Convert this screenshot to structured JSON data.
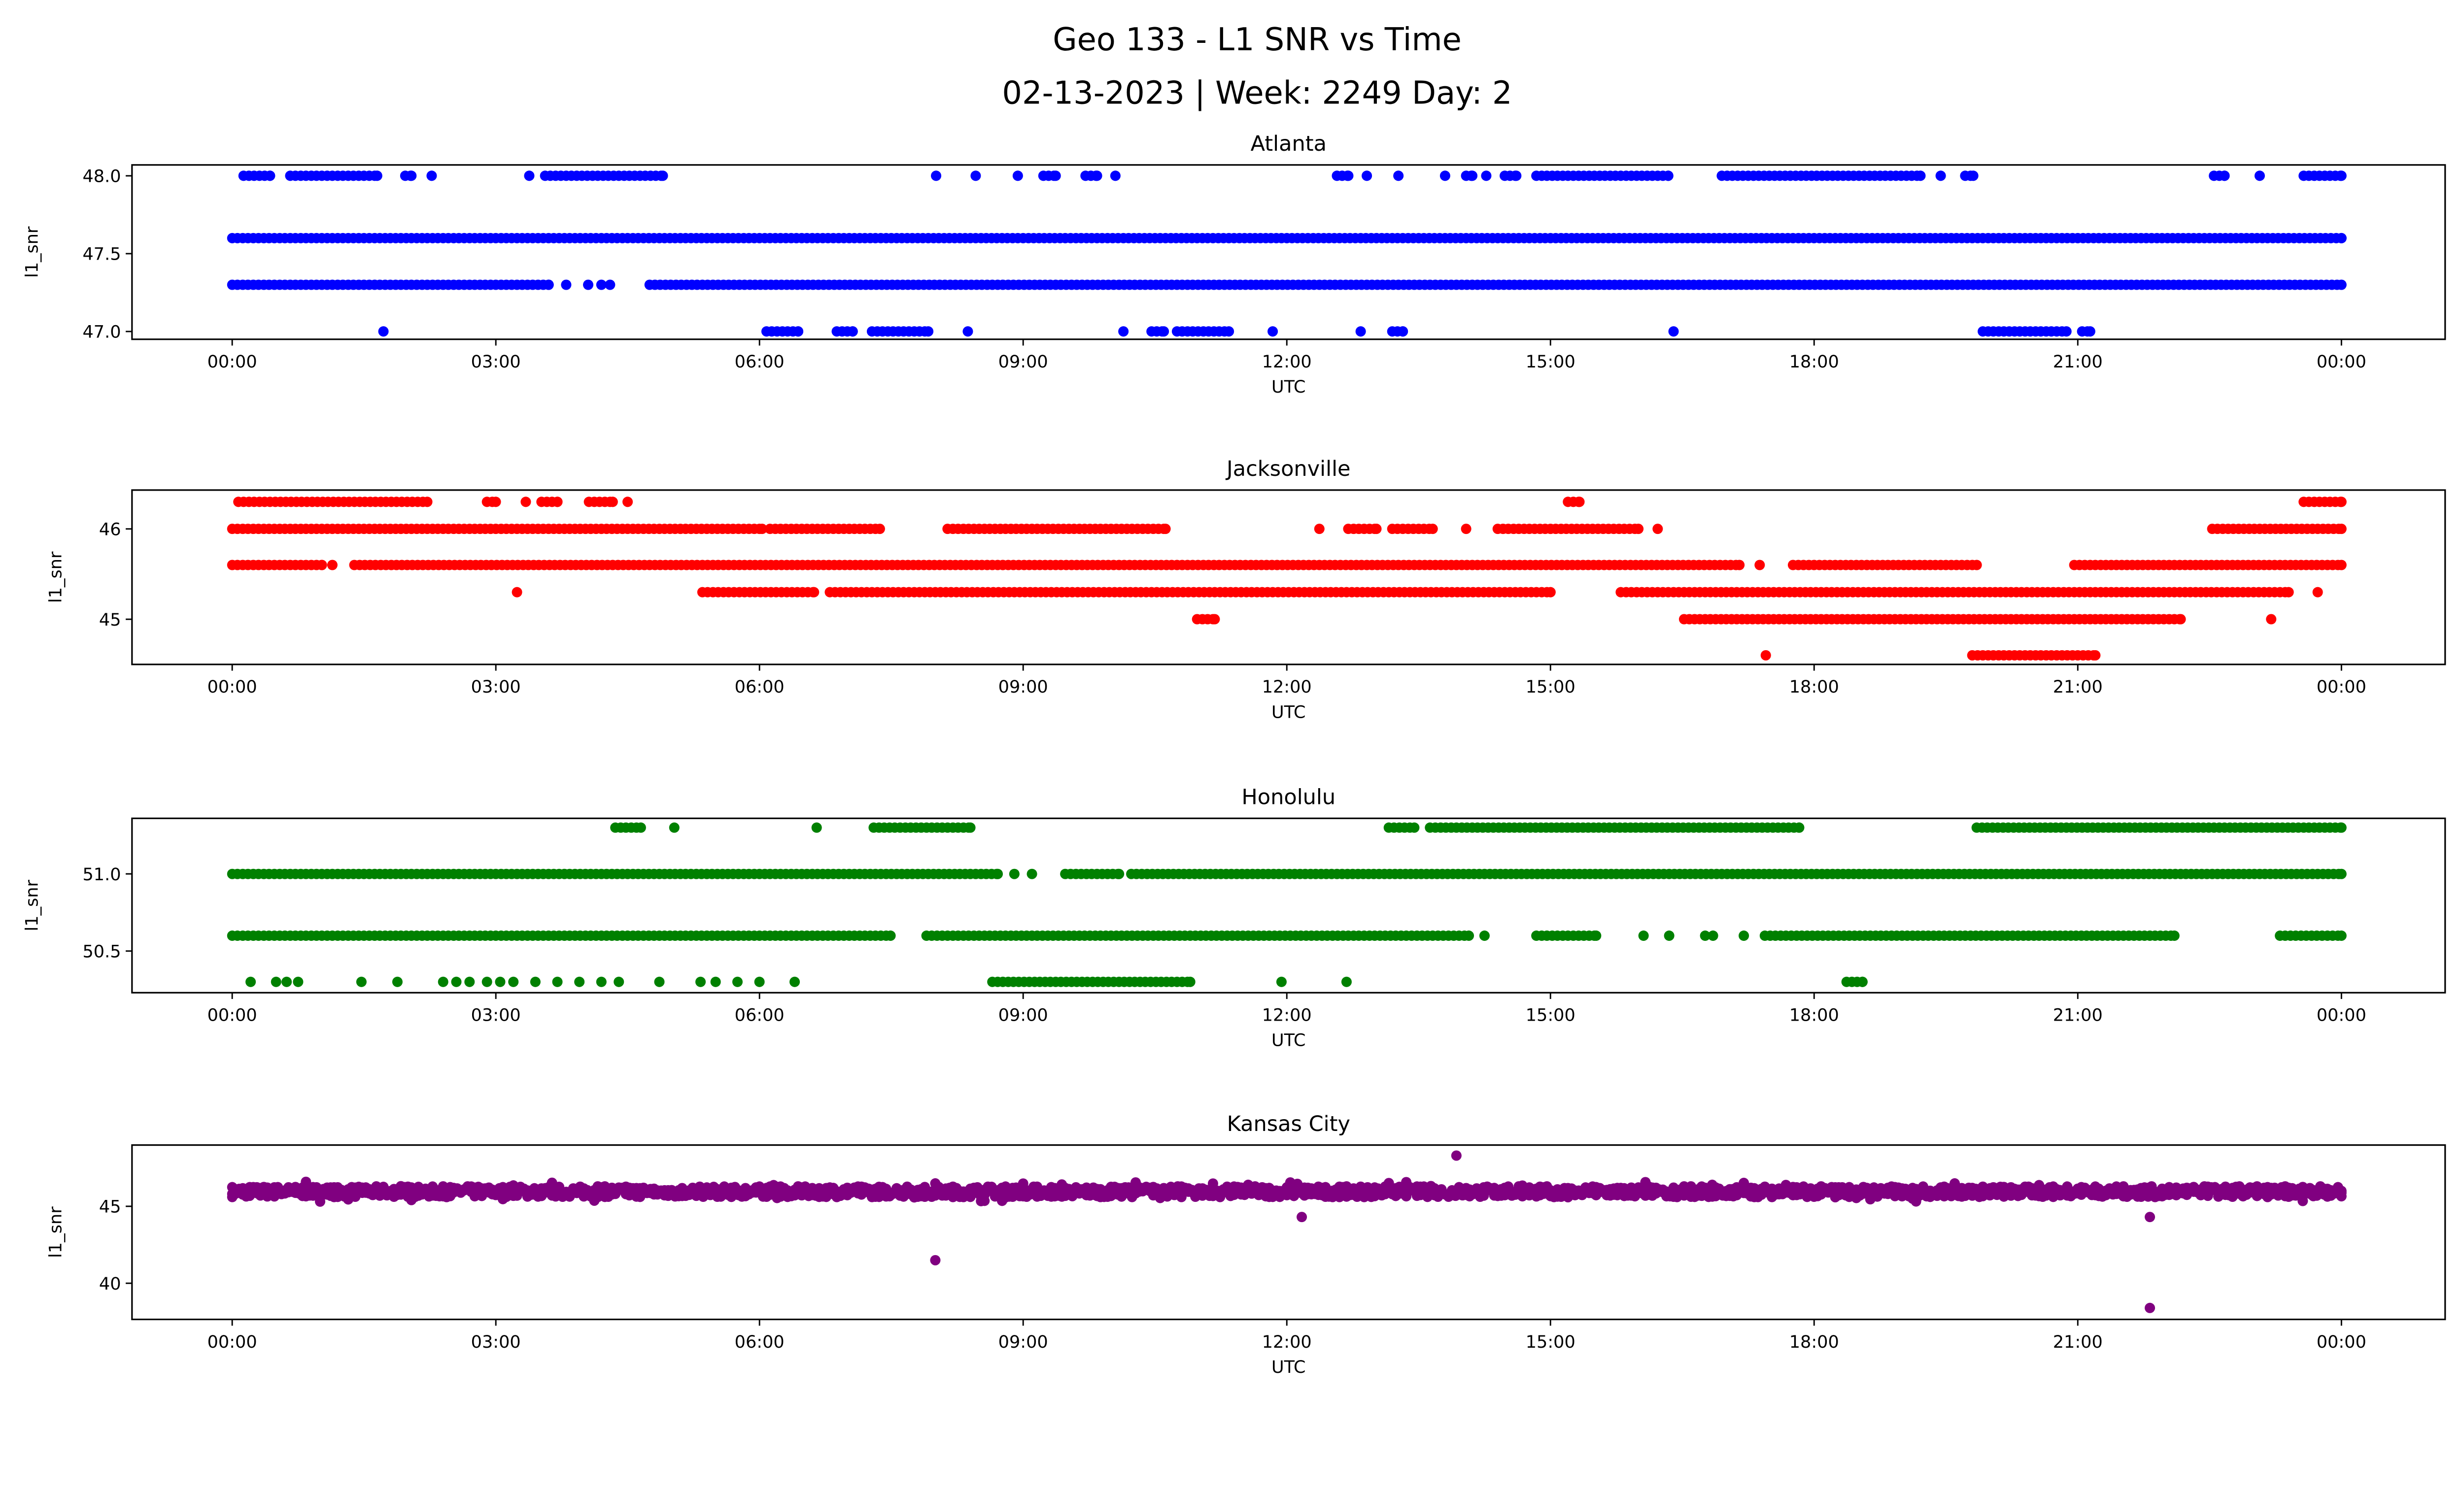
{
  "chart_data": {
    "type": "scatter",
    "title_line1": "Geo 133 - L1 SNR vs Time",
    "title_line2": "02-13-2023 | Week: 2249 Day: 2",
    "xlabel": "UTC",
    "ylabel": "l1_snr",
    "x_unit": "hours since 00:00 UTC",
    "xlim": [
      -1.14,
      25.18
    ],
    "x_ticks": [
      0,
      3,
      6,
      9,
      12,
      15,
      18,
      21,
      24
    ],
    "x_tick_labels": [
      "00:00",
      "03:00",
      "06:00",
      "09:00",
      "12:00",
      "15:00",
      "18:00",
      "21:00",
      "00:00"
    ],
    "grid": false,
    "panels": [
      {
        "name": "Atlanta",
        "color": "#0000ff",
        "ylim": [
          46.95,
          48.07
        ],
        "y_ticks": [
          47.0,
          47.5,
          48.0
        ],
        "y_tick_labels": [
          "47.0",
          "47.5",
          "48.0"
        ],
        "levels": [
          {
            "y": 48.0,
            "ranges": [
              [
                0.13,
                0.43
              ],
              [
                0.66,
                1.65
              ],
              [
                1.97,
                2.04
              ],
              [
                3.56,
                4.9
              ],
              [
                9.23,
                9.37
              ],
              [
                9.71,
                9.84
              ],
              [
                12.57,
                12.7
              ],
              [
                14.04,
                14.11
              ],
              [
                14.48,
                14.61
              ],
              [
                14.84,
                16.34
              ],
              [
                16.95,
                19.21
              ],
              [
                19.72,
                19.81
              ],
              [
                22.55,
                22.67
              ],
              [
                23.57,
                24
              ]
            ],
            "points": [
              2.27,
              3.38,
              8.01,
              8.46,
              8.94,
              10.05,
              12.91,
              13.27,
              13.8,
              14.27,
              19.44,
              23.07
            ]
          },
          {
            "y": 47.6,
            "ranges": [
              [
                0,
                24
              ]
            ],
            "points": []
          },
          {
            "y": 47.3,
            "ranges": [
              [
                0,
                3.6
              ],
              [
                4.75,
                24
              ]
            ],
            "points": [
              3.8,
              4.05,
              4.2,
              4.3
            ]
          },
          {
            "y": 47.0,
            "ranges": [
              [
                6.08,
                6.44
              ],
              [
                6.88,
                7.06
              ],
              [
                7.28,
                7.92
              ],
              [
                10.46,
                10.6
              ],
              [
                10.75,
                11.34
              ],
              [
                13.2,
                13.32
              ],
              [
                19.92,
                20.87
              ],
              [
                21.05,
                21.14
              ]
            ],
            "points": [
              1.72,
              8.37,
              10.14,
              11.84,
              12.84,
              16.4
            ]
          }
        ]
      },
      {
        "name": "Jacksonville",
        "color": "#ff0000",
        "ylim": [
          44.5,
          46.43
        ],
        "y_ticks": [
          45,
          46
        ],
        "y_tick_labels": [
          "45",
          "46"
        ],
        "levels": [
          {
            "y": 46.3,
            "ranges": [
              [
                0.07,
                2.22
              ],
              [
                2.9,
                3.0
              ],
              [
                3.52,
                3.7
              ],
              [
                4.06,
                4.33
              ],
              [
                15.2,
                15.33
              ],
              [
                23.57,
                24
              ]
            ],
            "points": [
              3.34,
              4.5
            ]
          },
          {
            "y": 46.0,
            "ranges": [
              [
                0,
                6.03
              ],
              [
                6.12,
                7.37
              ],
              [
                8.14,
                10.62
              ],
              [
                12.7,
                13.02
              ],
              [
                13.2,
                13.66
              ],
              [
                14.4,
                16.0
              ],
              [
                22.53,
                24
              ]
            ],
            "points": [
              12.37,
              14.04,
              16.22
            ]
          },
          {
            "y": 45.6,
            "ranges": [
              [
                0,
                1.02
              ],
              [
                1.39,
                17.15
              ],
              [
                17.76,
                19.85
              ],
              [
                20.96,
                24
              ]
            ],
            "points": [
              1.14,
              17.38
            ]
          },
          {
            "y": 45.3,
            "ranges": [
              [
                5.35,
                6.62
              ],
              [
                6.8,
                15.0
              ],
              [
                15.8,
                23.4
              ]
            ],
            "points": [
              3.24,
              23.73
            ]
          },
          {
            "y": 45.0,
            "ranges": [
              [
                10.98,
                11.18
              ],
              [
                16.52,
                22.17
              ]
            ],
            "points": [
              23.2
            ]
          },
          {
            "y": 44.6,
            "ranges": [
              [
                19.8,
                21.2
              ]
            ],
            "points": [
              17.45
            ]
          }
        ]
      },
      {
        "name": "Honolulu",
        "color": "#008000",
        "ylim": [
          50.23,
          51.36
        ],
        "y_ticks": [
          50.5,
          51.0
        ],
        "y_tick_labels": [
          "50.5",
          "51.0"
        ],
        "levels": [
          {
            "y": 51.3,
            "ranges": [
              [
                4.36,
                4.65
              ],
              [
                7.3,
                8.4
              ],
              [
                13.16,
                13.45
              ],
              [
                13.63,
                17.83
              ],
              [
                19.85,
                24
              ]
            ],
            "points": [
              5.03,
              6.65
            ]
          },
          {
            "y": 51.0,
            "ranges": [
              [
                0,
                8.71
              ],
              [
                9.48,
                10.09
              ],
              [
                10.23,
                24
              ]
            ],
            "points": [
              8.9,
              9.1
            ]
          },
          {
            "y": 50.6,
            "ranges": [
              [
                0,
                7.49
              ],
              [
                7.9,
                14.07
              ],
              [
                14.84,
                15.52
              ],
              [
                17.44,
                22.1
              ],
              [
                23.3,
                24
              ]
            ],
            "points": [
              14.25,
              16.06,
              16.35,
              16.76,
              16.85,
              17.2
            ]
          },
          {
            "y": 50.3,
            "ranges": [
              [
                8.65,
                10.9
              ],
              [
                18.37,
                18.55
              ]
            ],
            "points": [
              0.21,
              0.5,
              0.62,
              0.75,
              1.47,
              1.88,
              2.4,
              2.55,
              2.7,
              2.9,
              3.05,
              3.2,
              3.45,
              3.7,
              3.95,
              4.2,
              4.4,
              4.86,
              5.33,
              5.5,
              5.75,
              6.0,
              6.4,
              11.94,
              12.68
            ]
          }
        ]
      },
      {
        "name": "Kansas City",
        "color": "#800080",
        "ylim": [
          37.65,
          48.98
        ],
        "y_ticks": [
          40,
          45
        ],
        "y_tick_labels": [
          "40",
          "45"
        ],
        "band": {
          "range": [
            0,
            24
          ],
          "y_min": 45.3,
          "y_max": 46.6
        },
        "outliers": [
          [
            8.0,
            41.5
          ],
          [
            12.17,
            44.3
          ],
          [
            13.93,
            48.3
          ],
          [
            21.82,
            44.3
          ],
          [
            21.82,
            38.4
          ]
        ]
      }
    ]
  }
}
